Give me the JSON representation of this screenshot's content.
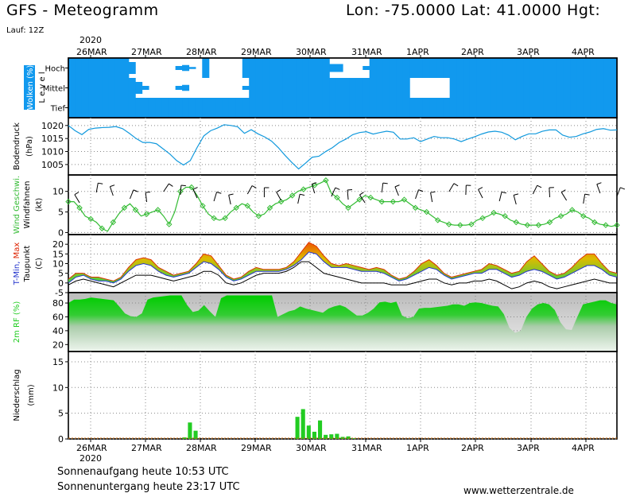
{
  "header": {
    "title": "GFS - Meteogramm",
    "coords": "Lon: -75.0000 Lat: 41.0000 Hgt:",
    "run": "Lauf: 12Z"
  },
  "footer": {
    "sunrise": "Sonnenaufgang heute 10:53 UTC",
    "sunset": "Sonnenuntergang heute 23:17 UTC",
    "site": "www.wetterzentrale.de"
  },
  "date_axis": {
    "year": "2020",
    "labels": [
      "26MAR",
      "27MAR",
      "28MAR",
      "29MAR",
      "30MAR",
      "31MAR",
      "1APR",
      "2APR",
      "3APR",
      "4APR"
    ]
  },
  "colors": {
    "cloud": "#1199ee",
    "pressure": "#1199dd",
    "wind": "#33bb33",
    "humidity": "#22cc22",
    "precip": "#22cc22",
    "grid": "#000000"
  },
  "chart_data": [
    {
      "type": "heatmap",
      "ylabel": "Wolken (%)",
      "ylabel2": "L e v e l",
      "levels": [
        "Hoch",
        "Mittel",
        "Tief"
      ],
      "x_start": "2020-03-25 12Z",
      "step_hours": 3,
      "cover": {
        "Hoch": [
          100,
          100,
          100,
          100,
          100,
          100,
          100,
          100,
          100,
          60,
          0,
          0,
          0,
          0,
          0,
          0,
          20,
          30,
          10,
          0,
          100,
          0,
          0,
          0,
          0,
          0,
          100,
          100,
          100,
          100,
          100,
          100,
          100,
          100,
          100,
          100,
          100,
          100,
          100,
          40,
          40,
          0,
          0,
          0,
          20,
          100,
          100,
          100,
          100,
          100,
          100,
          100,
          100,
          100,
          100,
          100,
          100,
          100,
          100,
          100,
          100,
          100,
          100,
          100,
          100,
          100,
          100,
          100,
          100,
          100,
          100,
          100,
          100,
          100,
          100,
          100,
          100,
          100,
          100,
          100,
          100,
          100
        ],
        "Mittel": [
          100,
          100,
          100,
          100,
          100,
          100,
          100,
          100,
          100,
          100,
          60,
          20,
          0,
          0,
          0,
          0,
          20,
          30,
          0,
          0,
          0,
          0,
          0,
          0,
          0,
          0,
          20,
          100,
          100,
          100,
          100,
          100,
          100,
          100,
          100,
          100,
          100,
          100,
          100,
          100,
          100,
          100,
          100,
          100,
          100,
          100,
          100,
          100,
          100,
          100,
          100,
          0,
          0,
          0,
          0,
          0,
          0,
          100,
          100,
          100,
          100,
          100,
          100,
          100,
          100,
          100,
          100,
          100,
          100,
          100,
          100,
          100,
          100,
          100,
          100,
          100,
          100,
          100,
          100,
          100,
          100,
          100
        ],
        "Tief": [
          100,
          100,
          100,
          100,
          100,
          100,
          100,
          100,
          100,
          100,
          100,
          100,
          100,
          100,
          100,
          100,
          100,
          100,
          100,
          100,
          100,
          100,
          100,
          100,
          100,
          100,
          100,
          100,
          100,
          100,
          100,
          100,
          100,
          100,
          100,
          100,
          100,
          100,
          100,
          100,
          100,
          100,
          100,
          100,
          100,
          100,
          100,
          100,
          100,
          100,
          100,
          100,
          100,
          100,
          100,
          100,
          100,
          100,
          100,
          100,
          100,
          100,
          100,
          100,
          100,
          100,
          100,
          100,
          100,
          100,
          100,
          100,
          100,
          100,
          100,
          100,
          100,
          100,
          100,
          100,
          100,
          100
        ]
      }
    },
    {
      "type": "line",
      "ylabel": "Bodendruck",
      "unit": "(hPa)",
      "ylim": [
        1001,
        1023
      ],
      "yticks": [
        1005,
        1010,
        1015,
        1020
      ],
      "step_hours": 3,
      "series": [
        {
          "values": [
            1020,
            1018,
            1016.5,
            1018.5,
            1019,
            1019.2,
            1019.3,
            1019.6,
            1018.8,
            1017,
            1015,
            1013.5,
            1013.5,
            1013,
            1011,
            1009,
            1006.5,
            1004.8,
            1006.5,
            1011.5,
            1016,
            1018,
            1019,
            1020.3,
            1020,
            1019.5,
            1017,
            1018.4,
            1016.8,
            1015.6,
            1014,
            1011.5,
            1008.5,
            1005.8,
            1003.3,
            1005.5,
            1007.8,
            1008.2,
            1010,
            1011.5,
            1013.5,
            1014.8,
            1016.5,
            1017.3,
            1017.6,
            1016.7,
            1017.3,
            1017.8,
            1017.4,
            1014.8,
            1014.8,
            1015.3,
            1013.8,
            1014.8,
            1015.8,
            1015.3,
            1015.3,
            1014.8,
            1013.8,
            1014.8,
            1015.7,
            1016.7,
            1017.5,
            1017.8,
            1017.4,
            1016.3,
            1014.5,
            1015.8,
            1016.8,
            1016.8,
            1017.8,
            1018.3,
            1018.3,
            1016.3,
            1015.5,
            1015.8,
            1016.8,
            1017.5,
            1018.5,
            1018.8,
            1018.2,
            1018.3
          ]
        }
      ]
    },
    {
      "type": "line",
      "ylabel": "Wind Geschwi.",
      "ylabel2": "Windfahnen",
      "unit": "(kt)",
      "ylim": [
        -0.5,
        14
      ],
      "yticks": [
        0,
        5,
        10
      ],
      "step_hours": 3,
      "series": [
        {
          "name": "Wind Geschwi.",
          "values": [
            7.5,
            7.5,
            6,
            4,
            3.3,
            2.5,
            1,
            0.3,
            2.5,
            4.5,
            6,
            7,
            5.5,
            4,
            4.5,
            5,
            5.5,
            4,
            2,
            5,
            10,
            11,
            11,
            9,
            6.5,
            4.5,
            3.5,
            3,
            3.5,
            5,
            6,
            7,
            6.5,
            5,
            4,
            4.5,
            6,
            7,
            7.5,
            8,
            9,
            10,
            10.5,
            11,
            11.5,
            12,
            12.7,
            9.5,
            8.5,
            7,
            6,
            7,
            8,
            9,
            8.5,
            8,
            7.5,
            7.5,
            7.5,
            7.5,
            8,
            7,
            6,
            5.5,
            5,
            4,
            3,
            2.5,
            2,
            1.8,
            1.8,
            1.8,
            2,
            3,
            3.5,
            4,
            4.8,
            4.5,
            4,
            3,
            2.5,
            2,
            1.8,
            1.8,
            1.8,
            2,
            2.5,
            3.5,
            4,
            4.5,
            5.5,
            5,
            4,
            3.5,
            2.5,
            2,
            1.8,
            1.5,
            1.8
          ]
        }
      ]
    },
    {
      "type": "area",
      "ylabel": "T-Min, Max",
      "ylabel2": "Taupunkt",
      "unit": "(C)",
      "ylim": [
        -5,
        25
      ],
      "yticks": [
        -5,
        0,
        5,
        10,
        15,
        20
      ],
      "step_hours": 3,
      "series": [
        {
          "name": "T-Max",
          "values": [
            2,
            5,
            5,
            3,
            3,
            2,
            1,
            3,
            8,
            12,
            13,
            12,
            8,
            6,
            4,
            5,
            6,
            10,
            15,
            14,
            9,
            4,
            2,
            3,
            6,
            8,
            7,
            7,
            7,
            8,
            11,
            16,
            21,
            19,
            14,
            10,
            9,
            10,
            9,
            8,
            7,
            8,
            7,
            4,
            2,
            3,
            6,
            10,
            12,
            9,
            5,
            3,
            4,
            5,
            6,
            7,
            10,
            9,
            7,
            5,
            6,
            11,
            14,
            10,
            6,
            4,
            5,
            8,
            12,
            15,
            15,
            10,
            6,
            5
          ]
        },
        {
          "name": "T-Min",
          "values": [
            0,
            3,
            4,
            2,
            1,
            1,
            0,
            2,
            6,
            9,
            10,
            9,
            6,
            4,
            3,
            4,
            5,
            8,
            11,
            10,
            7,
            3,
            1,
            2,
            4,
            6,
            6,
            6,
            6,
            7,
            9,
            12,
            16,
            15,
            11,
            8,
            8,
            8,
            7,
            6,
            6,
            6,
            5,
            3,
            1,
            2,
            4,
            6,
            8,
            7,
            4,
            2,
            3,
            4,
            5,
            5,
            7,
            7,
            5,
            3,
            4,
            6,
            7,
            6,
            4,
            2,
            3,
            5,
            7,
            9,
            9,
            7,
            4,
            3
          ]
        },
        {
          "name": "Taupunkt",
          "values": [
            -1,
            1,
            2,
            1,
            0,
            -1,
            -2,
            0,
            2,
            4,
            4,
            4,
            3,
            2,
            1,
            2,
            3,
            4,
            6,
            6,
            4,
            0,
            -1,
            0,
            2,
            4,
            5,
            5,
            5,
            6,
            8,
            11,
            11,
            8,
            5,
            4,
            3,
            2,
            1,
            0,
            0,
            0,
            0,
            -1,
            -1,
            -1,
            0,
            1,
            2,
            2,
            0,
            -1,
            0,
            0,
            1,
            1,
            2,
            1,
            -1,
            -3,
            -2,
            0,
            1,
            0,
            -2,
            -3,
            -2,
            -1,
            0,
            1,
            2,
            1,
            0,
            0
          ]
        }
      ]
    },
    {
      "type": "area",
      "ylabel": "2m RF (%)",
      "ylim": [
        10,
        95
      ],
      "yticks": [
        20,
        40,
        60,
        80
      ],
      "step_hours": 3,
      "series": [
        {
          "name": "2m RF",
          "values": [
            80,
            85,
            85,
            86,
            88,
            87,
            86,
            85,
            84,
            75,
            65,
            61,
            60,
            65,
            85,
            88,
            89,
            90,
            91,
            91,
            91,
            77,
            67,
            69,
            77,
            68,
            60,
            87,
            91,
            91,
            91,
            91,
            91,
            91,
            91,
            91,
            91,
            60,
            64,
            68,
            70,
            75,
            72,
            70,
            68,
            66,
            72,
            75,
            77,
            74,
            68,
            62,
            62,
            66,
            72,
            81,
            82,
            80,
            82,
            62,
            58,
            60,
            72,
            73,
            73,
            74,
            75,
            76,
            78,
            78,
            76,
            80,
            81,
            80,
            78,
            76,
            75,
            64,
            44,
            37,
            40,
            60,
            72,
            78,
            80,
            78,
            70,
            52,
            42,
            41,
            60,
            78,
            80,
            82,
            84,
            84,
            80,
            78
          ]
        }
      ]
    },
    {
      "type": "bar",
      "ylabel": "Niederschlag",
      "unit": "(mm)",
      "ylim": [
        0,
        17
      ],
      "yticks": [
        0,
        5,
        10,
        15
      ],
      "step_hours": 6,
      "values": [
        0,
        0,
        0,
        0,
        0,
        0,
        0,
        0,
        0,
        0,
        0,
        0,
        0,
        0,
        0,
        0,
        0,
        0,
        0,
        0,
        0.3,
        3.2,
        1.6,
        0,
        0,
        0,
        0,
        0,
        0,
        0,
        0,
        0,
        0,
        0,
        0,
        0,
        0,
        0,
        0,
        0,
        4.3,
        5.8,
        2.6,
        1.4,
        3.6,
        0.8,
        0.9,
        1.0,
        0.4,
        0.5,
        0.1,
        0,
        0,
        0,
        0,
        0,
        0,
        0,
        0,
        0,
        0,
        0,
        0,
        0,
        0,
        0,
        0,
        0,
        0,
        0,
        0,
        0,
        0,
        0,
        0,
        0,
        0,
        0,
        0,
        0,
        0,
        0,
        0,
        0,
        0,
        0,
        0,
        0,
        0,
        0,
        0,
        0,
        0,
        0,
        0,
        0,
        0
      ]
    }
  ]
}
